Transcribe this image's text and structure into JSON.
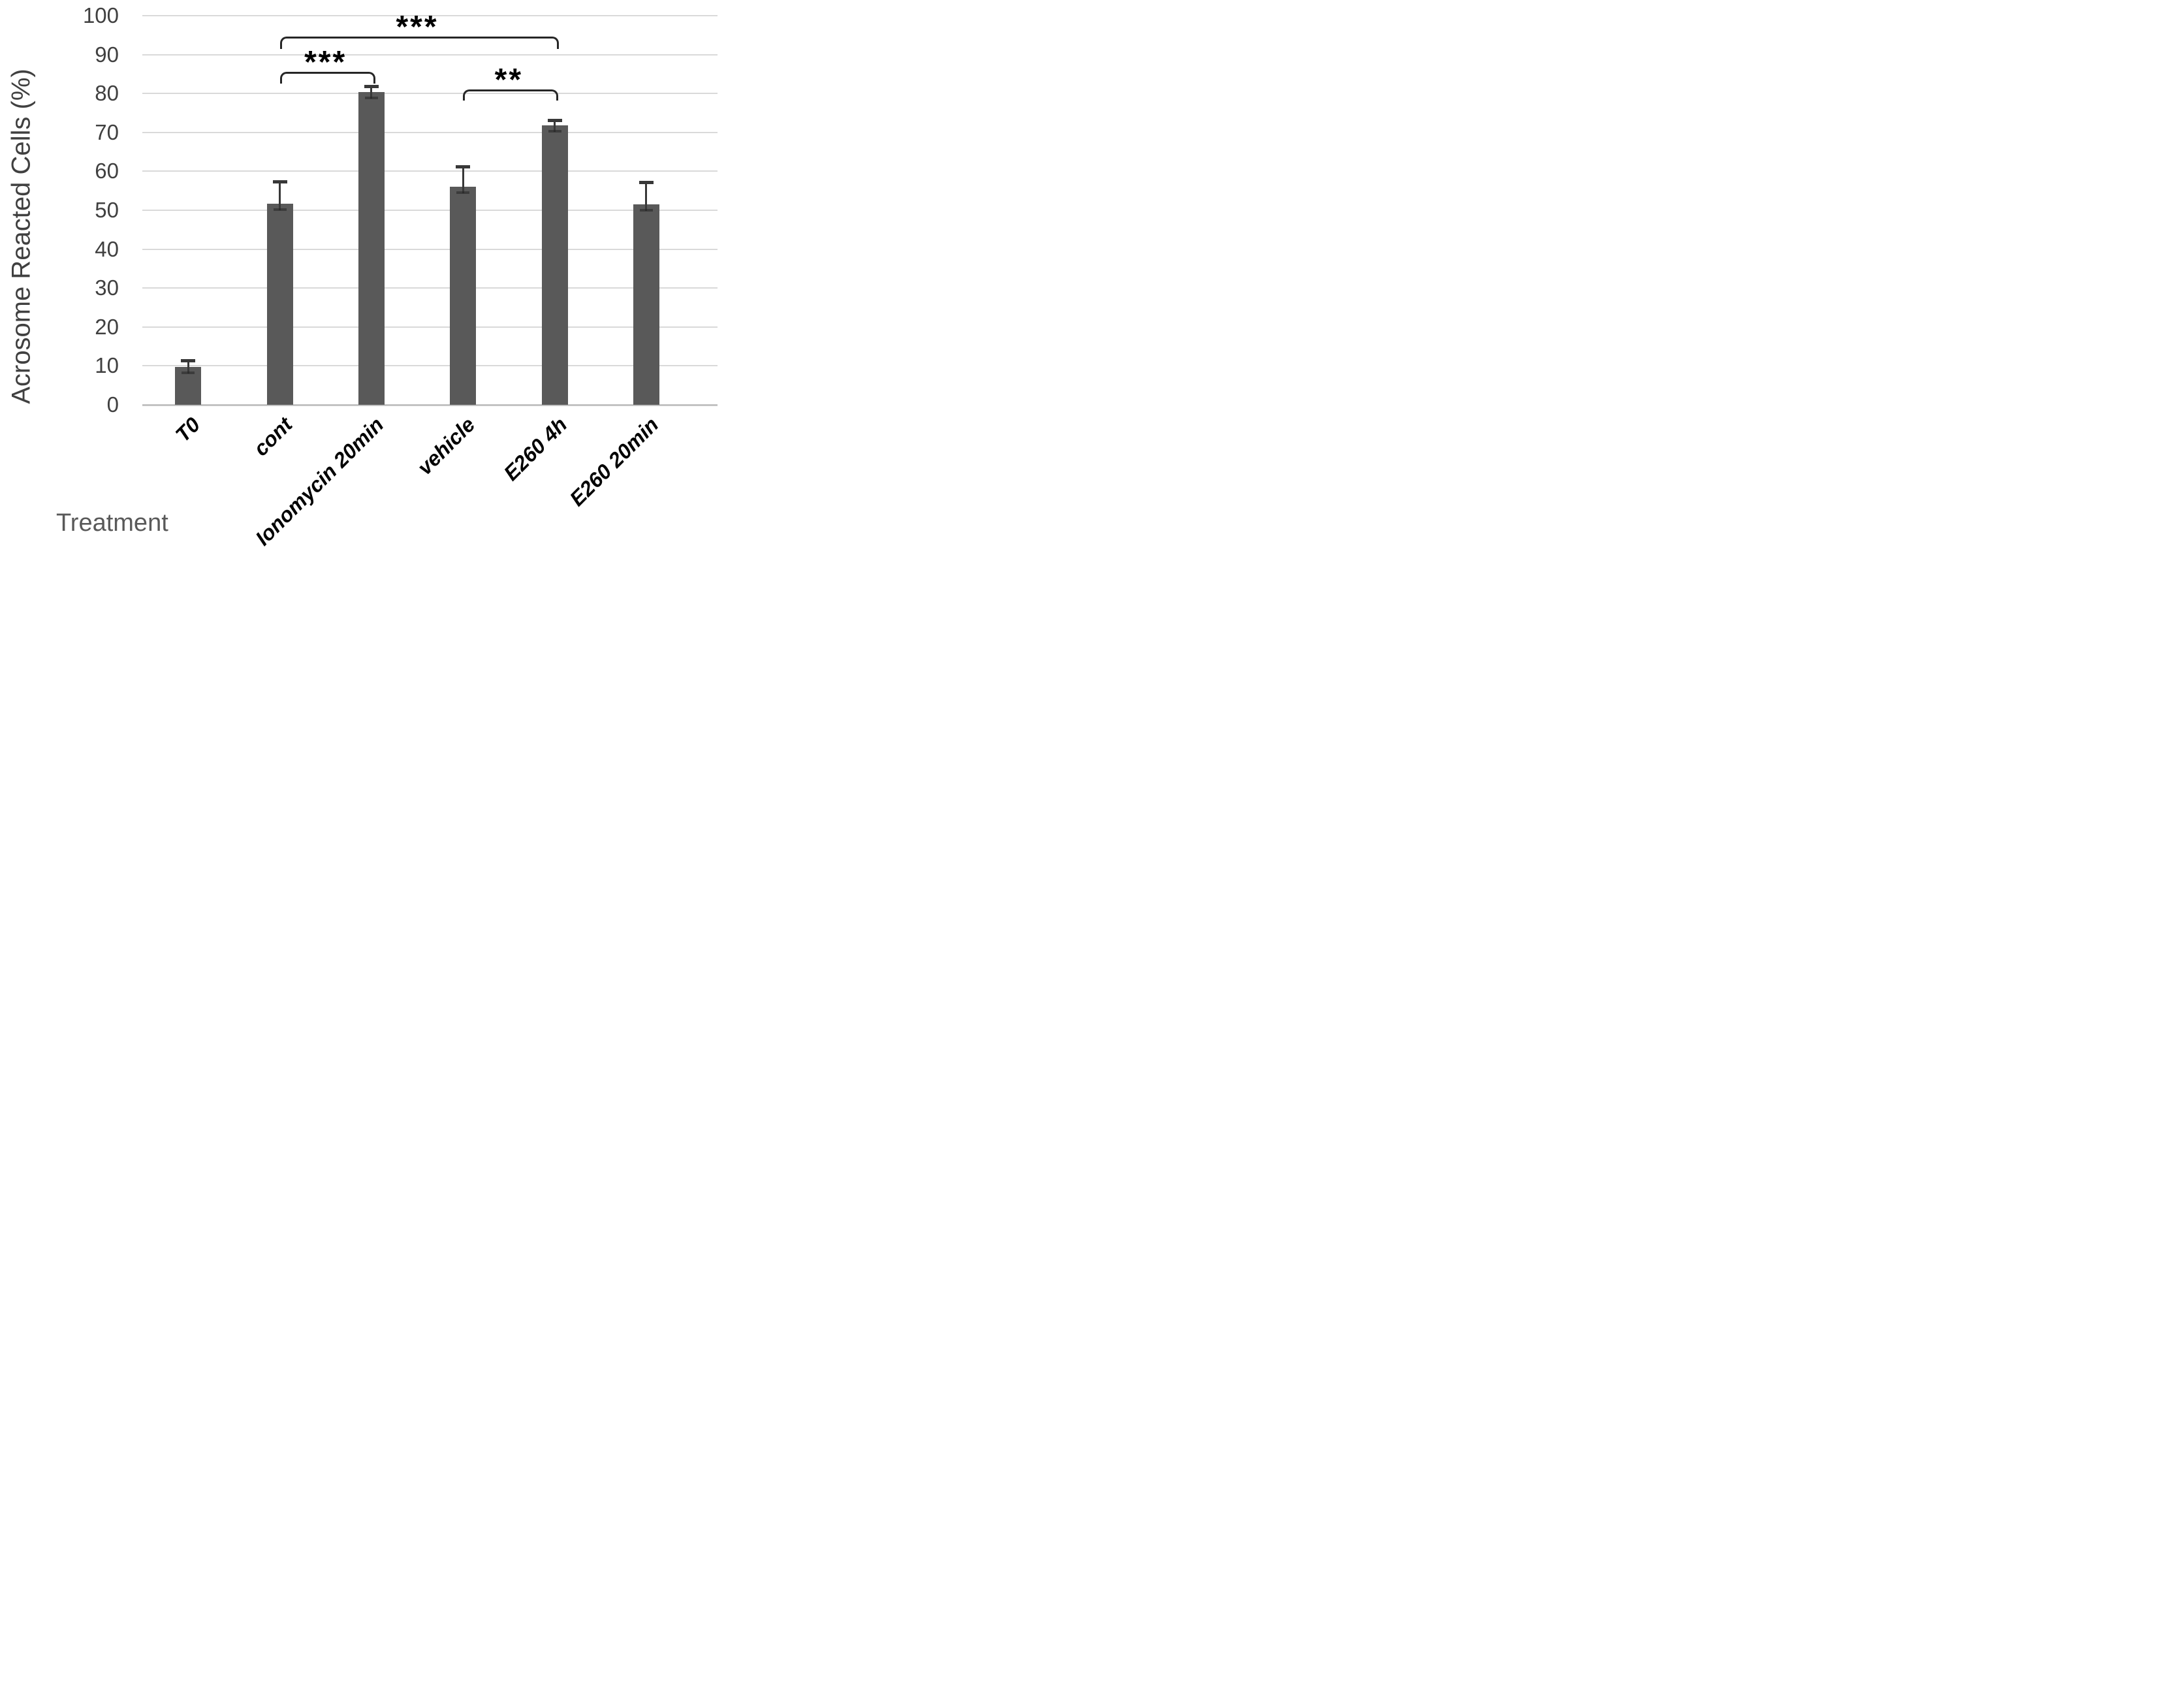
{
  "chart_data": {
    "type": "bar",
    "title": "",
    "xlabel": "Treatment",
    "ylabel": "Acrosome Reacted Cells (%)",
    "ylim": [
      0,
      100
    ],
    "yticks": [
      0,
      10,
      20,
      30,
      40,
      50,
      60,
      70,
      80,
      90,
      100
    ],
    "grid": true,
    "legend": "none",
    "categories": [
      "T0",
      "cont",
      "Ionomycin 20min",
      "vehicle",
      "E260 4h",
      "E260 20min"
    ],
    "values": [
      9.7,
      51.7,
      80.3,
      56.0,
      71.8,
      51.5
    ],
    "errors_plus": [
      1.7,
      5.6,
      1.5,
      5.3,
      1.4,
      5.7
    ],
    "bar_color": "#595959",
    "error_bar_color": "#383838",
    "gridline_color": "#d9d9d9",
    "axis_line_color": "#c3c3c3",
    "tick_label_color": "#404040",
    "axis_title_color": "#595959",
    "significance": [
      {
        "from": "cont",
        "to": "E260 4h",
        "label": "***",
        "line_value": 94.6,
        "tick_drop": 2.6
      },
      {
        "from": "cont",
        "to": "Ionomycin 20min",
        "label": "***",
        "line_value": 85.6,
        "tick_drop": 2.6
      },
      {
        "from": "vehicle",
        "to": "E260 4h",
        "label": "**",
        "line_value": 81.0,
        "tick_drop": 2.3
      }
    ]
  }
}
